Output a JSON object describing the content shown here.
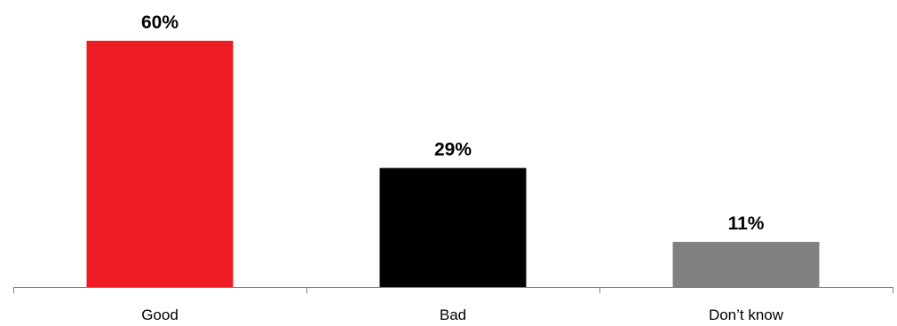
{
  "chart_data": {
    "type": "bar",
    "categories": [
      "Good",
      "Bad",
      "Don’t know"
    ],
    "values": [
      60,
      29,
      11
    ],
    "value_labels": [
      "60%",
      "29%",
      "11%"
    ],
    "colors": [
      "#ed1c24",
      "#000000",
      "#808080"
    ],
    "title": "",
    "xlabel": "",
    "ylabel": "",
    "ylim": [
      0,
      60
    ],
    "grid": false,
    "legend": "none",
    "axis_color": "#7f7f7f"
  }
}
